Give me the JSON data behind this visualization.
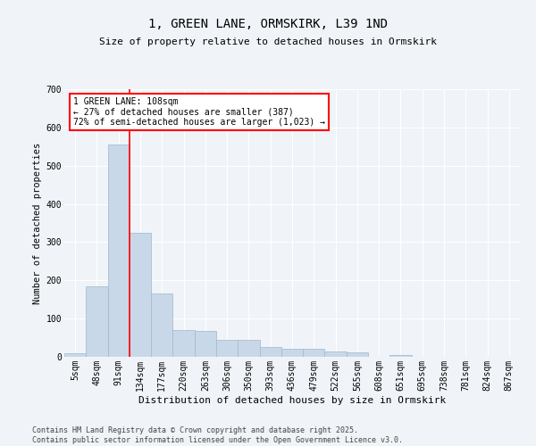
{
  "title_line1": "1, GREEN LANE, ORMSKIRK, L39 1ND",
  "title_line2": "Size of property relative to detached houses in Ormskirk",
  "xlabel": "Distribution of detached houses by size in Ormskirk",
  "ylabel": "Number of detached properties",
  "bins": [
    "5sqm",
    "48sqm",
    "91sqm",
    "134sqm",
    "177sqm",
    "220sqm",
    "263sqm",
    "306sqm",
    "350sqm",
    "393sqm",
    "436sqm",
    "479sqm",
    "522sqm",
    "565sqm",
    "608sqm",
    "651sqm",
    "695sqm",
    "738sqm",
    "781sqm",
    "824sqm",
    "867sqm"
  ],
  "bar_values": [
    10,
    185,
    555,
    325,
    165,
    70,
    68,
    45,
    45,
    25,
    22,
    20,
    14,
    12,
    0,
    5,
    0,
    0,
    0,
    0,
    0
  ],
  "bar_color": "#c8d8e8",
  "bar_edge_color": "#a0b8cc",
  "vline_x": 2.5,
  "vline_color": "red",
  "annotation_text": "1 GREEN LANE: 108sqm\n← 27% of detached houses are smaller (387)\n72% of semi-detached houses are larger (1,023) →",
  "annotation_box_color": "white",
  "annotation_box_edge": "red",
  "ylim": [
    0,
    700
  ],
  "yticks": [
    0,
    100,
    200,
    300,
    400,
    500,
    600,
    700
  ],
  "footer_line1": "Contains HM Land Registry data © Crown copyright and database right 2025.",
  "footer_line2": "Contains public sector information licensed under the Open Government Licence v3.0.",
  "bg_color": "#f0f4f8",
  "plot_bg_color": "#f0f4f8",
  "grid_color": "white",
  "title_fontsize": 10,
  "subtitle_fontsize": 8,
  "tick_fontsize": 7,
  "ylabel_fontsize": 7.5,
  "xlabel_fontsize": 8,
  "footer_fontsize": 6,
  "annot_fontsize": 7
}
